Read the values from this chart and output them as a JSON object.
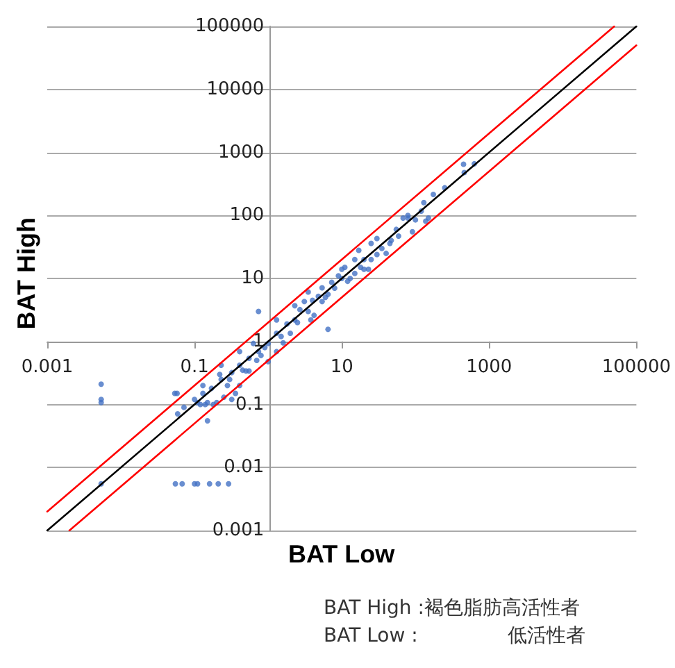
{
  "chart_data": {
    "type": "scatter",
    "xlabel": "BAT Low",
    "ylabel": "BAT High",
    "log": "xy",
    "xlim": [
      0.001,
      100000
    ],
    "ylim": [
      0.001,
      100000
    ],
    "xticks": [
      0.001,
      0.1,
      10,
      1000,
      100000
    ],
    "yticks": [
      0.001,
      0.01,
      0.1,
      1,
      10,
      100,
      1000,
      10000,
      100000
    ],
    "grid": "y",
    "marker": "circle",
    "annotations": [
      "BAT High :褐色脂肪高活性者",
      "BAT Low :　　　 　 低活性者"
    ],
    "series": [
      {
        "color": "#4472c4",
        "x": [
          0.0054,
          0.0054,
          0.0054,
          0.0054,
          0.055,
          0.068,
          0.1,
          0.11,
          0.16,
          0.21,
          0.29,
          0.74,
          6.5,
          450,
          630,
          460,
          250,
          175,
          130,
          150,
          120,
          79,
          68,
          138,
          91,
          59,
          47,
          30,
          25,
          17,
          20,
          15,
          30,
          45,
          11,
          10,
          7.3,
          5.4,
          4.8,
          3.1,
          2.7,
          2.3,
          1.8,
          1.3,
          1.0,
          0.74,
          0.55,
          0.41,
          0.32,
          0.23,
          0.17,
          0.13,
          0.11,
          0.1,
          0.15,
          0.059,
          0.054,
          0.058,
          0.072,
          0.32,
          0.23,
          0.63,
          2.3,
          4.2,
          5.4,
          10,
          13,
          20,
          23,
          6.5,
          3.5,
          2.0,
          1.3,
          0.41,
          0.55,
          1.3,
          0.2,
          0.15,
          0.13,
          0.28,
          0.41,
          0.36,
          0.5,
          1.0,
          0.12,
          0.14,
          0.18,
          0.25,
          0.3,
          0.45,
          0.7,
          0.9,
          1.5,
          2.5,
          3.5,
          4,
          6,
          8,
          9,
          12,
          15,
          18,
          25,
          35,
          40,
          55,
          80,
          100,
          3.8,
          1.6,
          0.8,
          0.22
        ],
        "values": [
          0.21,
          0.12,
          0.107,
          0.0055,
          0.0055,
          0.0055,
          0.0055,
          0.0055,
          0.0055,
          0.0055,
          0.0055,
          3.0,
          1.56,
          650,
          660,
          480,
          275,
          215,
          160,
          91,
          117,
          100,
          91,
          81,
          55,
          47,
          40,
          43,
          36,
          28,
          14,
          20,
          24,
          36,
          15,
          10,
          8.7,
          7.1,
          5.2,
          4.3,
          3.2,
          2.2,
          1.9,
          1.35,
          0.93,
          0.69,
          0.54,
          0.42,
          0.32,
          0.25,
          0.18,
          0.15,
          0.107,
          0.12,
          0.055,
          0.071,
          0.15,
          0.15,
          0.09,
          0.12,
          0.42,
          0.93,
          3.7,
          2.6,
          4.3,
          14,
          10,
          20,
          14,
          5.6,
          6.1,
          1.35,
          2.2,
          0.69,
          0.34,
          0.69,
          0.107,
          0.107,
          0.2,
          0.2,
          0.2,
          0.15,
          0.34,
          0.48,
          0.1,
          0.1,
          0.1,
          0.13,
          0.25,
          0.35,
          0.5,
          0.8,
          1.2,
          2.0,
          3.0,
          4.5,
          5,
          7,
          11,
          9,
          12,
          15,
          20,
          30,
          25,
          60,
          90,
          85,
          2.2,
          0.95,
          0.6,
          0.3
        ]
      },
      {
        "type": "line",
        "color": "#000000",
        "marker": "none",
        "x": [
          0.001,
          100000
        ],
        "values": [
          0.001,
          100000
        ]
      },
      {
        "type": "line",
        "color": "#ff0000",
        "marker": "none",
        "x": [
          0.001,
          50000
        ],
        "values": [
          0.002,
          100000
        ]
      },
      {
        "type": "line",
        "color": "#ff0000",
        "marker": "none",
        "x": [
          0.002,
          100000
        ],
        "values": [
          0.001,
          50000
        ]
      }
    ]
  }
}
